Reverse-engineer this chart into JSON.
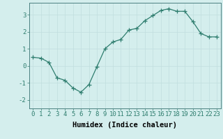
{
  "x": [
    0,
    1,
    2,
    3,
    4,
    5,
    6,
    7,
    8,
    9,
    10,
    11,
    12,
    13,
    14,
    15,
    16,
    17,
    18,
    19,
    20,
    21,
    22,
    23
  ],
  "y": [
    0.5,
    0.45,
    0.2,
    -0.7,
    -0.85,
    -1.3,
    -1.55,
    -1.1,
    -0.05,
    1.0,
    1.4,
    1.55,
    2.1,
    2.2,
    2.65,
    2.95,
    3.25,
    3.35,
    3.2,
    3.2,
    2.6,
    1.9,
    1.7,
    1.7
  ],
  "xlabel": "Humidex (Indice chaleur)",
  "ylim": [
    -2.5,
    3.7
  ],
  "xlim": [
    -0.5,
    23.5
  ],
  "yticks": [
    -2,
    -1,
    0,
    1,
    2,
    3
  ],
  "xticks": [
    0,
    1,
    2,
    3,
    4,
    5,
    6,
    7,
    8,
    9,
    10,
    11,
    12,
    13,
    14,
    15,
    16,
    17,
    18,
    19,
    20,
    21,
    22,
    23
  ],
  "line_color": "#2e7d6e",
  "marker": "+",
  "marker_size": 4,
  "bg_color": "#d4eeed",
  "grid_color": "#c0dede",
  "tick_fontsize": 6.5,
  "label_fontsize": 7.5
}
